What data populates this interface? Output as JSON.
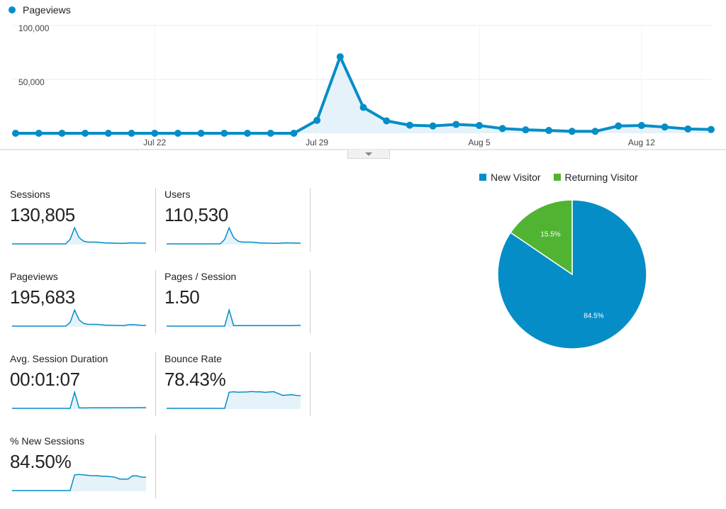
{
  "main_chart": {
    "legend_label": "Pageviews",
    "color": "#058dc7",
    "fill": "#e6f2f9",
    "y_ticks": [
      "100,000",
      "50,000"
    ],
    "x_ticks": [
      "Jul 22",
      "Jul 29",
      "Aug 5",
      "Aug 12"
    ]
  },
  "chart_data": {
    "type": "line",
    "series": [
      {
        "name": "Pageviews",
        "values": [
          0,
          0,
          0,
          0,
          0,
          0,
          0,
          0,
          0,
          0,
          0,
          0,
          0,
          12000,
          71000,
          24000,
          11500,
          7500,
          6800,
          8200,
          7200,
          4400,
          3200,
          2600,
          1800,
          1800,
          6800,
          7200,
          5800,
          4000,
          3500
        ]
      }
    ],
    "x": [
      "Jul 16",
      "Jul 17",
      "Jul 18",
      "Jul 19",
      "Jul 20",
      "Jul 21",
      "Jul 22",
      "Jul 23",
      "Jul 24",
      "Jul 25",
      "Jul 26",
      "Jul 27",
      "Jul 28",
      "Jul 29",
      "Jul 30",
      "Jul 31",
      "Aug 1",
      "Aug 2",
      "Aug 3",
      "Aug 4",
      "Aug 5",
      "Aug 6",
      "Aug 7",
      "Aug 8",
      "Aug 9",
      "Aug 10",
      "Aug 11",
      "Aug 12",
      "Aug 13",
      "Aug 14",
      "Aug 15"
    ],
    "ylim": [
      0,
      100000
    ],
    "grid": true
  },
  "metrics": [
    {
      "label": "Sessions",
      "value": "130,805",
      "spark": [
        0,
        0,
        0,
        0,
        0,
        0,
        0,
        0,
        0,
        0,
        0,
        0,
        0,
        5,
        18,
        7,
        3,
        2,
        2,
        2,
        1.5,
        1,
        1,
        0.8,
        0.7,
        0.6,
        1,
        1.2,
        1,
        0.9,
        0.8
      ],
      "fill": false
    },
    {
      "label": "Users",
      "value": "110,530",
      "spark": [
        0,
        0,
        0,
        0,
        0,
        0,
        0,
        0,
        0,
        0,
        0,
        0,
        0,
        5,
        18,
        7,
        3,
        2,
        2,
        2,
        1.5,
        1,
        1,
        0.8,
        0.7,
        0.6,
        1,
        1.2,
        1,
        0.9,
        0.8
      ],
      "fill": false
    },
    {
      "label": "Pageviews",
      "value": "195,683",
      "spark": [
        0,
        0,
        0,
        0,
        0,
        0,
        0,
        0,
        0,
        0,
        0,
        0,
        0,
        4,
        18,
        7,
        3,
        2,
        2,
        2,
        1.5,
        1,
        1,
        0.8,
        0.7,
        0.6,
        1.5,
        1.7,
        1.3,
        0.9,
        0.8
      ],
      "fill": false
    },
    {
      "label": "Pages / Session",
      "value": "1.50",
      "spark": [
        0,
        0,
        0,
        0,
        0,
        0,
        0,
        0,
        0,
        0,
        0,
        0,
        0,
        0,
        18,
        0.6,
        0.6,
        0.6,
        0.6,
        0.6,
        0.6,
        0.6,
        0.6,
        0.6,
        0.6,
        0.6,
        0.6,
        0.6,
        0.6,
        0.8,
        0.8
      ],
      "fill": false
    },
    {
      "label": "Avg. Session Duration",
      "value": "00:01:07",
      "spark": [
        0,
        0,
        0,
        0,
        0,
        0,
        0,
        0,
        0,
        0,
        0,
        0,
        0,
        0,
        18,
        0.5,
        0.5,
        0.5,
        0.6,
        0.6,
        0.6,
        0.6,
        0.6,
        0.7,
        0.7,
        0.7,
        0.7,
        0.7,
        0.8,
        0.8,
        0.8
      ],
      "fill": false
    },
    {
      "label": "Bounce Rate",
      "value": "78.43%",
      "spark": [
        0,
        0,
        0,
        0,
        0,
        0,
        0,
        0,
        0,
        0,
        0,
        0,
        0,
        0,
        18,
        18.5,
        18,
        18.2,
        18.3,
        18.8,
        18.4,
        18.5,
        17.8,
        18.3,
        18.6,
        16.5,
        14.5,
        14.8,
        15.2,
        14.5,
        14
      ],
      "fill": true
    },
    {
      "label": "% New Sessions",
      "value": "84.50%",
      "spark": [
        0,
        0,
        0,
        0,
        0,
        0,
        0,
        0,
        0,
        0,
        0,
        0,
        0,
        0,
        17.5,
        18,
        17.5,
        17,
        16.5,
        16.7,
        16,
        16,
        15.5,
        15,
        13,
        12.7,
        13,
        16.5,
        16.3,
        15,
        14.8
      ],
      "fill": true
    }
  ],
  "pie": {
    "legend": [
      {
        "label": "New Visitor",
        "color": "#058dc7"
      },
      {
        "label": "Returning Visitor",
        "color": "#50b432"
      }
    ],
    "slices": [
      {
        "label": "New Visitor",
        "value": 84.5,
        "text": "84.5%",
        "color": "#058dc7"
      },
      {
        "label": "Returning Visitor",
        "value": 15.5,
        "text": "15.5%",
        "color": "#50b432"
      }
    ]
  }
}
